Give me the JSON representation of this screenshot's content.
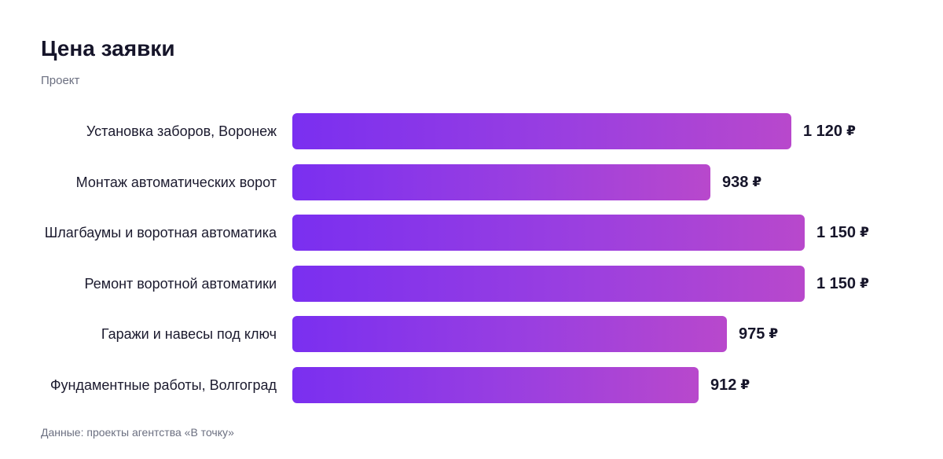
{
  "chart_data": {
    "type": "bar",
    "orientation": "horizontal",
    "title": "Цена заявки",
    "subtitle": "Проект",
    "categories": [
      "Установка заборов, Воронеж",
      "Монтаж автоматических ворот",
      "Шлагбаумы и воротная автоматика",
      "Ремонт воротной автоматики",
      "Гаражи и навесы под ключ",
      "Фундаментные работы, Волгоград"
    ],
    "values": [
      1120,
      938,
      1150,
      1150,
      975,
      912
    ],
    "value_labels": [
      "1 120",
      "938",
      "1 150",
      "1 150",
      "975",
      "912"
    ],
    "currency": "₽",
    "xlim": [
      0,
      1150
    ],
    "grid": false,
    "legend": "none",
    "colors": {
      "bar_start": "#7a2ff0",
      "bar_end": "#b848cc"
    }
  },
  "footer": "Данные: проекты агентства «В точку»"
}
